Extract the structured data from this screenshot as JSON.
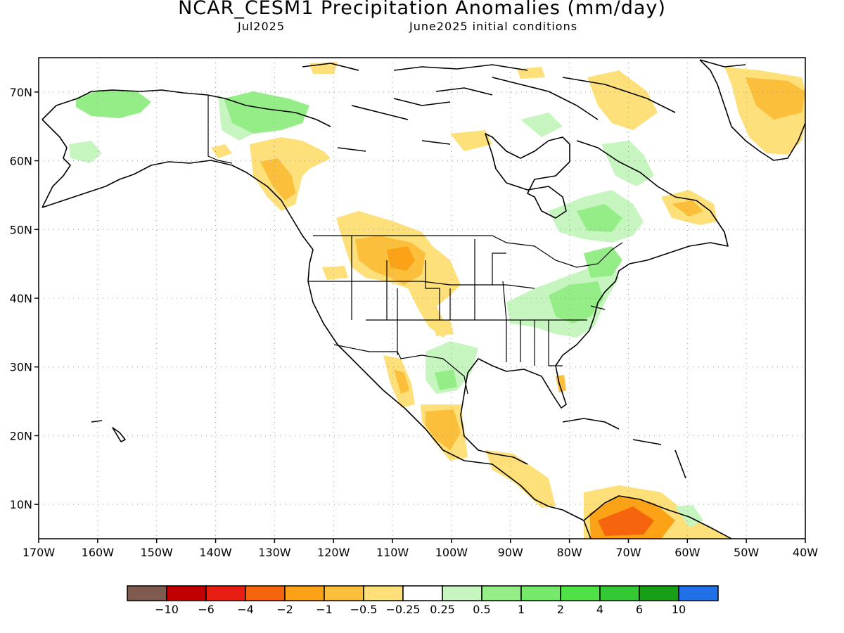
{
  "title": "NCAR_CESM1 Precipitation Anomalies (mm/day)",
  "subtitle_left": "Jul2025",
  "subtitle_right": "June2025 initial conditions",
  "map": {
    "lon_range": [
      -170,
      -40
    ],
    "lat_range": [
      5,
      75
    ],
    "lat_ticks": [
      "10N",
      "20N",
      "30N",
      "40N",
      "50N",
      "60N",
      "70N"
    ],
    "lon_ticks": [
      "170W",
      "160W",
      "150W",
      "140W",
      "130W",
      "120W",
      "110W",
      "100W",
      "90W",
      "80W",
      "70W",
      "60W",
      "50W",
      "40W"
    ],
    "gridlines": "dotted"
  },
  "colorbar": {
    "colors": [
      "#7f5a4e",
      "#c00000",
      "#e81e12",
      "#f6640e",
      "#fba217",
      "#fbbf3c",
      "#fde07a",
      "#ffffff",
      "#c6f5c0",
      "#94ed86",
      "#76e86a",
      "#50e146",
      "#34c934",
      "#17a017",
      "#2070e8"
    ],
    "labels": [
      "−10",
      "−6",
      "−4",
      "−2",
      "−1",
      "−0.5",
      "−0.25",
      "0.25",
      "0.5",
      "1",
      "2",
      "4",
      "6",
      "10"
    ]
  },
  "anomaly_colors": {
    "dry_light": "#fde07a",
    "dry_moderate": "#fbbf3c",
    "dry_strong": "#fba217",
    "dry_heavy": "#f6640e",
    "wet_light": "#c6f5c0",
    "wet_moderate": "#94ed86"
  }
}
